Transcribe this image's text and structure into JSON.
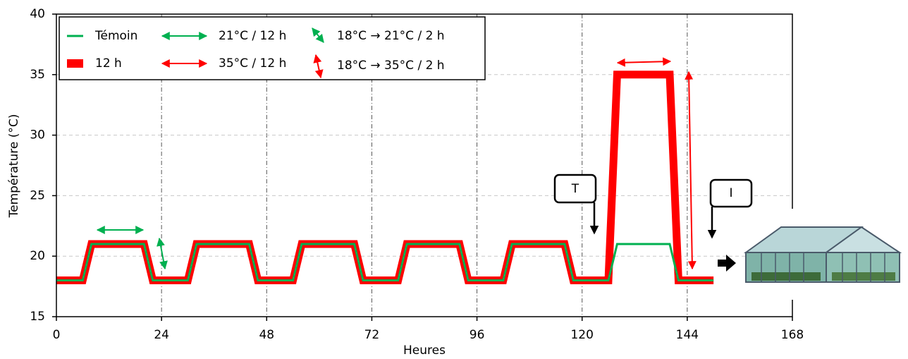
{
  "chart_data": {
    "type": "line",
    "x_label": "Heures",
    "y_label": "Température (°C)",
    "x": [
      0,
      6,
      8,
      20,
      22,
      30,
      32,
      44,
      46,
      54,
      56,
      68,
      70,
      78,
      80,
      92,
      94,
      102,
      104,
      116,
      118,
      126,
      128,
      140,
      142,
      150
    ],
    "series": [
      {
        "name": "Témoin",
        "color": "#00b050",
        "values": [
          18,
          18,
          21,
          21,
          18,
          18,
          21,
          21,
          18,
          18,
          21,
          21,
          18,
          18,
          21,
          21,
          18,
          18,
          21,
          21,
          18,
          18,
          21,
          21,
          18,
          18
        ]
      },
      {
        "name": "12 h",
        "color": "#ff0000",
        "values": [
          18,
          18,
          21,
          21,
          18,
          18,
          21,
          21,
          18,
          18,
          21,
          21,
          18,
          18,
          21,
          21,
          18,
          18,
          21,
          21,
          18,
          18,
          35,
          35,
          18,
          18
        ]
      }
    ],
    "xlim": [
      0,
      168
    ],
    "xticks": [
      0,
      24,
      48,
      72,
      96,
      120,
      144,
      168
    ],
    "ylim": [
      15,
      40
    ],
    "yticks": [
      15,
      20,
      25,
      30,
      35,
      40
    ],
    "grid": true,
    "annotations": [
      "21°C / 12 h",
      "35°C / 12 h",
      "18°C → 21°C / 2 h",
      "18°C → 35°C / 2 h",
      "T",
      "I"
    ]
  }
}
